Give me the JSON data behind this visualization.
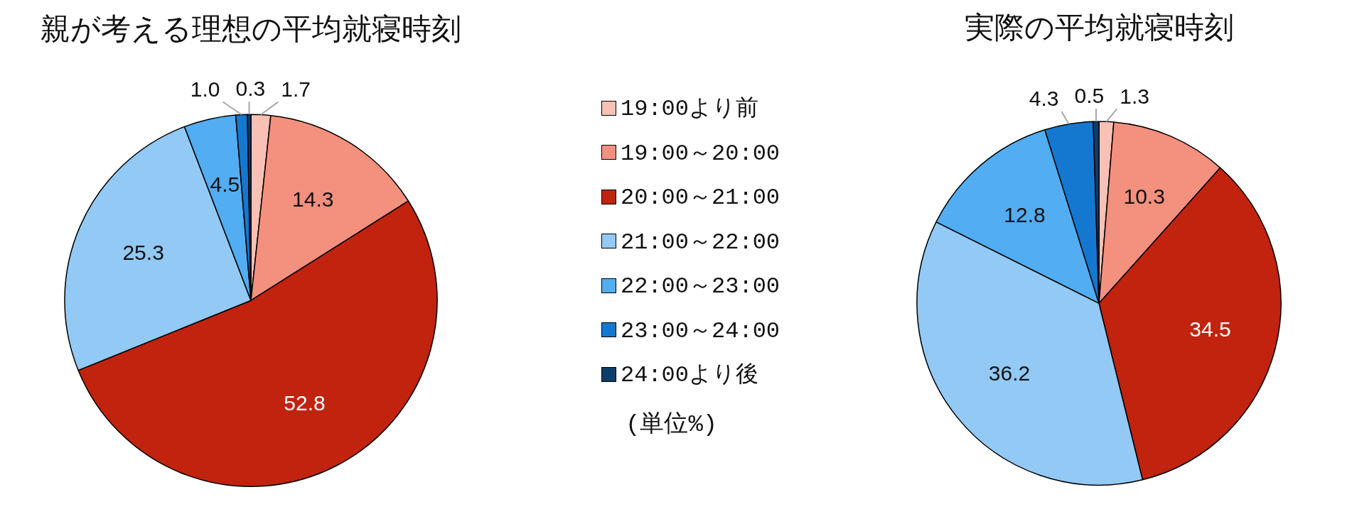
{
  "chart_data": {
    "type": "pie",
    "categories": [
      "19:00より前",
      "19:00～20:00",
      "20:00～21:00",
      "21:00～22:00",
      "22:00～23:00",
      "23:00～24:00",
      "24:00より後"
    ],
    "colors": [
      "#f9c0b5",
      "#f4907e",
      "#c1230f",
      "#92c9f5",
      "#52adf2",
      "#1478d0",
      "#0d3d6b"
    ],
    "series": [
      {
        "name": "親が考える理想の平均就寝時刻",
        "values": [
          1.7,
          14.3,
          52.8,
          25.3,
          4.5,
          1.0,
          0.3
        ],
        "value_labels": [
          "1.7",
          "14.3",
          "52.8",
          "25.3",
          "4.5",
          "1.0",
          "0.3"
        ]
      },
      {
        "name": "実際の平均就寝時刻",
        "values": [
          1.3,
          10.3,
          34.5,
          36.2,
          12.8,
          4.3,
          0.5
        ],
        "value_labels": [
          "1.3",
          "10.3",
          "34.5",
          "36.2",
          "12.8",
          "4.3",
          "0.5"
        ]
      }
    ],
    "legend": "right",
    "annotations": [
      "(単位%)"
    ]
  }
}
